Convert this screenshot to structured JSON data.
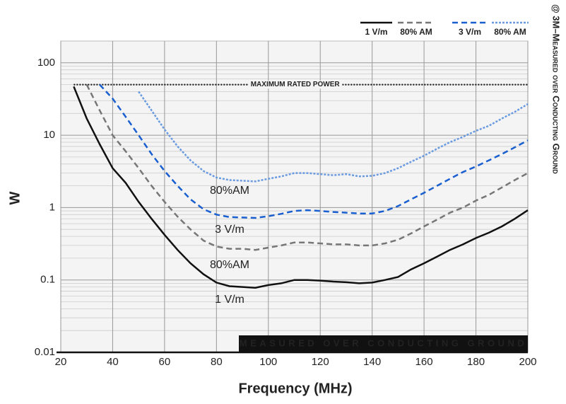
{
  "chart_data": {
    "type": "line",
    "x_label": "Frequency (MHz)",
    "y_label": "W",
    "side_note": "@ 3M–Measured over Conducting Ground",
    "banner": "MEASURED OVER CONDUCTING GROUND",
    "y_log": true,
    "grid": true,
    "xlim": [
      20,
      200
    ],
    "xticks": [
      20,
      40,
      60,
      80,
      100,
      120,
      140,
      160,
      180,
      200
    ],
    "ylim": [
      0.01,
      200
    ],
    "yticks": [
      100,
      10,
      1,
      0.1,
      0.01
    ],
    "limit_line": {
      "text": "MAXIMUM RATED POWER",
      "value": 50,
      "color": "#1a5fd0"
    },
    "curve_labels": [
      "80%AM",
      "3 V/m",
      "80%AM",
      "1 V/m"
    ],
    "x": [
      25,
      30,
      35,
      40,
      45,
      50,
      55,
      60,
      65,
      70,
      75,
      80,
      85,
      90,
      95,
      100,
      105,
      110,
      115,
      120,
      125,
      130,
      135,
      140,
      145,
      150,
      155,
      160,
      165,
      170,
      175,
      180,
      185,
      190,
      195,
      200
    ],
    "series": [
      {
        "name": "1 V/m",
        "color": "#111111",
        "dash": "solid",
        "values": [
          47,
          17,
          7.5,
          3.5,
          2.2,
          1.2,
          0.7,
          0.42,
          0.26,
          0.17,
          0.12,
          0.092,
          0.082,
          0.08,
          0.078,
          0.085,
          0.09,
          0.1,
          0.1,
          0.098,
          0.095,
          0.093,
          0.09,
          0.092,
          0.1,
          0.11,
          0.14,
          0.17,
          0.21,
          0.26,
          0.31,
          0.38,
          0.45,
          0.55,
          0.7,
          0.92
        ]
      },
      {
        "name": "80% AM",
        "color": "#777777",
        "dash": "dashed",
        "values": [
          null,
          50,
          22,
          10,
          6,
          3.5,
          2,
          1.2,
          0.75,
          0.5,
          0.35,
          0.29,
          0.27,
          0.27,
          0.26,
          0.28,
          0.3,
          0.33,
          0.33,
          0.32,
          0.31,
          0.31,
          0.3,
          0.3,
          0.32,
          0.36,
          0.44,
          0.55,
          0.68,
          0.85,
          1.0,
          1.25,
          1.5,
          1.9,
          2.4,
          3.0
        ]
      },
      {
        "name": "3 V/m",
        "color": "#1a5fd0",
        "dash": "dashed",
        "values": [
          null,
          null,
          50,
          32,
          18,
          10,
          5.5,
          3.2,
          2,
          1.3,
          0.95,
          0.8,
          0.74,
          0.73,
          0.72,
          0.76,
          0.82,
          0.9,
          0.92,
          0.9,
          0.87,
          0.85,
          0.83,
          0.83,
          0.9,
          1.05,
          1.3,
          1.6,
          2.0,
          2.5,
          3.1,
          3.7,
          4.5,
          5.5,
          6.8,
          8.5
        ]
      },
      {
        "name": "80% AM",
        "color": "#6a9be0",
        "dash": "dotted",
        "values": [
          null,
          null,
          null,
          null,
          null,
          40,
          22,
          12,
          7,
          4.5,
          3.2,
          2.6,
          2.4,
          2.35,
          2.3,
          2.5,
          2.7,
          3.0,
          3.0,
          2.9,
          2.8,
          2.9,
          2.7,
          2.75,
          3.0,
          3.5,
          4.3,
          5.2,
          6.5,
          8,
          9.5,
          11.5,
          13.5,
          17,
          21,
          27
        ]
      }
    ]
  }
}
